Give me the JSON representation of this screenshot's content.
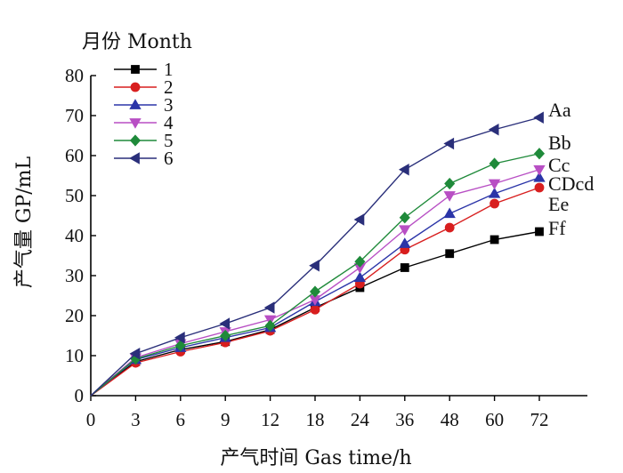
{
  "chart_data": {
    "type": "line",
    "xlabel": "产气时间 Gas time/h",
    "ylabel": "产气量 GP/mL",
    "ylim": [
      0,
      80
    ],
    "yticks": [
      0,
      10,
      20,
      30,
      40,
      50,
      60,
      70,
      80
    ],
    "categories": [
      "0",
      "3",
      "6",
      "9",
      "12",
      "18",
      "24",
      "36",
      "48",
      "60",
      "72"
    ],
    "legend": {
      "title": "月份 Month",
      "placement": "top-left"
    },
    "series": [
      {
        "name": "1",
        "color": "#000000",
        "marker": "square",
        "end_label": "Ff",
        "values": [
          0,
          8.5,
          11.5,
          13.5,
          16.5,
          22,
          27,
          32,
          35.5,
          39,
          41
        ]
      },
      {
        "name": "2",
        "color": "#d81e1e",
        "marker": "circle",
        "end_label": "Ee",
        "values": [
          0,
          8.2,
          11,
          13.3,
          16.2,
          21.5,
          28,
          36.5,
          42,
          48,
          52
        ]
      },
      {
        "name": "3",
        "color": "#2b35a8",
        "marker": "triangle-up",
        "end_label": "CDcd",
        "values": [
          0,
          9,
          12,
          14.5,
          17,
          23.5,
          29.5,
          38,
          45.5,
          50.5,
          54.5
        ]
      },
      {
        "name": "4",
        "color": "#b84fc4",
        "marker": "triangle-down",
        "end_label": "Cc",
        "values": [
          0,
          9.5,
          13,
          16,
          19,
          24,
          32,
          41.5,
          50,
          53,
          56.5
        ]
      },
      {
        "name": "5",
        "color": "#1f8a3a",
        "marker": "diamond",
        "end_label": "Bb",
        "values": [
          0,
          9.2,
          12.5,
          15,
          17.5,
          26,
          33.5,
          44.5,
          53,
          58,
          60.5
        ]
      },
      {
        "name": "6",
        "color": "#2a2f7a",
        "marker": "triangle-left",
        "end_label": "Aa",
        "values": [
          0,
          10.5,
          14.5,
          18,
          22,
          32.5,
          44,
          56.5,
          63,
          66.5,
          69.5
        ]
      }
    ]
  }
}
